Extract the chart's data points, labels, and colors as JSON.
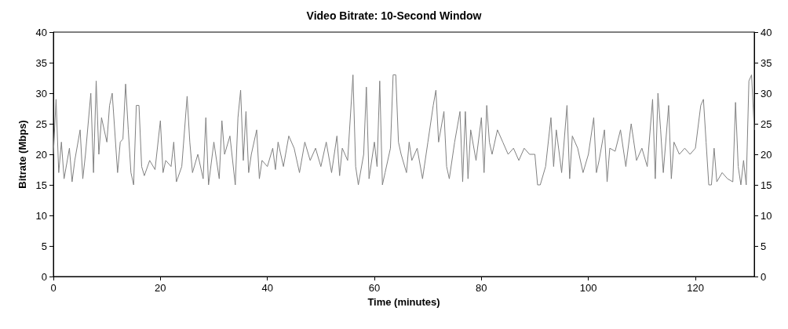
{
  "chart_data": {
    "type": "line",
    "title": "Video Bitrate: 10-Second Window",
    "xlabel": "Time (minutes)",
    "ylabel": "Bitrate (Mbps)",
    "x": [
      0,
      0.5,
      1,
      1.5,
      2,
      3,
      3.5,
      4,
      5,
      5.5,
      6,
      7,
      7.5,
      8,
      8.5,
      9,
      10,
      10.5,
      11,
      12,
      12.5,
      13,
      13.5,
      14,
      14.5,
      15,
      15.5,
      16,
      16.5,
      17,
      18,
      19,
      20,
      20.5,
      21,
      22,
      22.5,
      23,
      24,
      25,
      25.5,
      26,
      27,
      28,
      28.5,
      29,
      30,
      31,
      31.5,
      32,
      33,
      34,
      34.5,
      35,
      35.5,
      36,
      36.5,
      37,
      38,
      38.5,
      39,
      40,
      41,
      41.5,
      42,
      43,
      44,
      45,
      46,
      47,
      48,
      49,
      50,
      51,
      52,
      53,
      53.5,
      54,
      55,
      56,
      56.5,
      57,
      58,
      58.5,
      59,
      60,
      60.5,
      61,
      61.5,
      62,
      63,
      63.5,
      64,
      64.5,
      65,
      66,
      66.5,
      67,
      68,
      69,
      70,
      71,
      71.5,
      72,
      73,
      73.5,
      74,
      75,
      76,
      76.5,
      77,
      77.5,
      78,
      79,
      80,
      80.5,
      81,
      81.5,
      82,
      83,
      84,
      85,
      86,
      87,
      88,
      89,
      90,
      90.5,
      91,
      92,
      93,
      93.5,
      94,
      95,
      96,
      96.5,
      97,
      98,
      99,
      100,
      101,
      101.5,
      102,
      103,
      103.5,
      104,
      105,
      106,
      107,
      108,
      109,
      110,
      111,
      112,
      112.5,
      113,
      113.5,
      114,
      115,
      115.5,
      116,
      117,
      118,
      119,
      120,
      121,
      121.5,
      122,
      122.5,
      123,
      123.5,
      124,
      125,
      126,
      127,
      127.5,
      128,
      128.5,
      129,
      129.5,
      130,
      130.5,
      131
    ],
    "series": [
      {
        "color": "#808080",
        "values": [
          20,
          29,
          17,
          22,
          16,
          21,
          15.5,
          19,
          24,
          16,
          20,
          30,
          17,
          32,
          20,
          26,
          22,
          28,
          30,
          17,
          22,
          22.5,
          31.5,
          24,
          17,
          15,
          28,
          28,
          18,
          16.5,
          19,
          17.5,
          25.5,
          17,
          19,
          18,
          22,
          15.5,
          18,
          29.5,
          22,
          17,
          20,
          16,
          26,
          15,
          22,
          16,
          25.5,
          20,
          23,
          15,
          26,
          30.5,
          19,
          27,
          17,
          20,
          24,
          16,
          19,
          18,
          21,
          17.5,
          22,
          18,
          23,
          21,
          17,
          22,
          19,
          21,
          18,
          22,
          17,
          23,
          16.5,
          21,
          19,
          33,
          18,
          15,
          20,
          31,
          16,
          22,
          18,
          32,
          15,
          17,
          21,
          33,
          33,
          22,
          20,
          17,
          22,
          19,
          21,
          16,
          22,
          28,
          30.5,
          22,
          27,
          18,
          16,
          22,
          27,
          15.5,
          27,
          16,
          24,
          19,
          26,
          17,
          28,
          22,
          20,
          24,
          22,
          20,
          21,
          19,
          21,
          20,
          20,
          15,
          15,
          18,
          26,
          18,
          24,
          17,
          28,
          16,
          23,
          21,
          17,
          20,
          26,
          17,
          19,
          24,
          15.5,
          21,
          20.5,
          24,
          18,
          25,
          19,
          21,
          18,
          29,
          16,
          30,
          24,
          17,
          28,
          16,
          22,
          20,
          21,
          20,
          21,
          28,
          29,
          22,
          15,
          15,
          21,
          15.5,
          17,
          16,
          15.5,
          28.5,
          18,
          15,
          19,
          15,
          32,
          33,
          24
        ]
      }
    ],
    "xlim": [
      0,
      131
    ],
    "xticks": [
      0,
      20,
      40,
      60,
      80,
      100,
      120
    ],
    "ylim": [
      0,
      40
    ],
    "yticks": [
      0,
      5,
      10,
      15,
      20,
      25,
      30,
      35,
      40
    ],
    "y2lim": [
      0,
      40
    ],
    "y2ticks": [
      0,
      5,
      10,
      15,
      20,
      25,
      30,
      35,
      40
    ],
    "grid": false,
    "marker": "none",
    "line_style": "solid"
  }
}
